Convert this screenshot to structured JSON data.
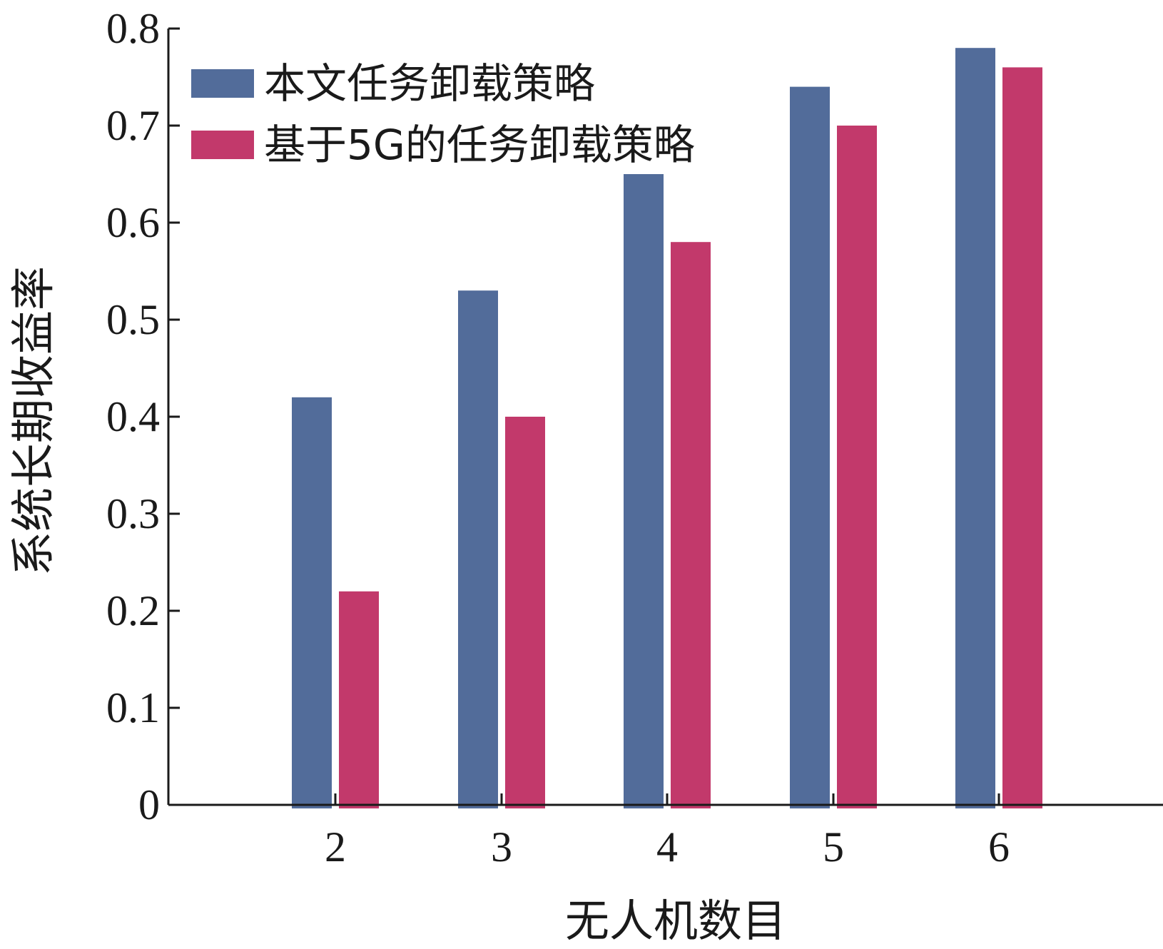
{
  "chart_data": {
    "type": "bar",
    "categories": [
      "2",
      "3",
      "4",
      "5",
      "6"
    ],
    "series": [
      {
        "name": "本文任务卸载策略",
        "color": "#526c9a",
        "values": [
          0.42,
          0.53,
          0.65,
          0.74,
          0.78
        ]
      },
      {
        "name": "基于5G的任务卸载策略",
        "color": "#c2396b",
        "values": [
          0.22,
          0.4,
          0.58,
          0.7,
          0.76
        ]
      }
    ],
    "title": "",
    "xlabel": "无人机数目",
    "ylabel": "系统长期收益率",
    "ylim": [
      0,
      0.8
    ],
    "yticks": [
      "0",
      "0.1",
      "0.2",
      "0.3",
      "0.4",
      "0.5",
      "0.6",
      "0.7",
      "0.8"
    ],
    "grid": false,
    "legend_position": "top-left"
  }
}
